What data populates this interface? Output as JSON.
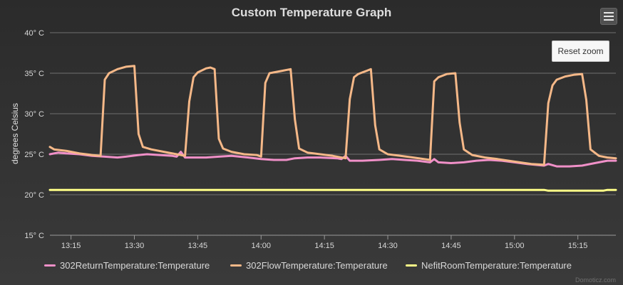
{
  "toolbar": {
    "menu_icon": "hamburger-menu-icon",
    "reset_zoom_label": "Reset zoom"
  },
  "credits": "Domoticz.com",
  "chart_data": {
    "type": "line",
    "title": "Custom Temperature Graph",
    "ylabel": "degrees Celsius",
    "xlabel": "",
    "x_unit": "time (HH:MM)",
    "x_range": [
      "13:10",
      "15:24"
    ],
    "ylim": [
      15,
      40
    ],
    "y_ticks": [
      15,
      20,
      25,
      30,
      35,
      40
    ],
    "y_tick_labels": [
      "15° C",
      "20° C",
      "25° C",
      "30° C",
      "35° C",
      "40° C"
    ],
    "x_ticks": [
      "13:15",
      "13:30",
      "13:45",
      "14:00",
      "14:15",
      "14:30",
      "14:45",
      "15:00",
      "15:15"
    ],
    "grid": "horizontal",
    "legend": "bottom",
    "series": [
      {
        "name": "302ReturnTemperature:Temperature",
        "color": "#f090c8",
        "points": [
          [
            "13:10",
            25.0
          ],
          [
            "13:12",
            25.2
          ],
          [
            "13:14",
            25.1
          ],
          [
            "13:17",
            25.0
          ],
          [
            "13:20",
            24.8
          ],
          [
            "13:23",
            24.7
          ],
          [
            "13:26",
            24.6
          ],
          [
            "13:28",
            24.7
          ],
          [
            "13:31",
            24.9
          ],
          [
            "13:33",
            25.0
          ],
          [
            "13:36",
            24.9
          ],
          [
            "13:39",
            24.8
          ],
          [
            "13:40",
            24.7
          ],
          [
            "13:41",
            25.3
          ],
          [
            "13:42",
            24.6
          ],
          [
            "13:44",
            24.6
          ],
          [
            "13:47",
            24.6
          ],
          [
            "13:50",
            24.7
          ],
          [
            "13:53",
            24.8
          ],
          [
            "13:57",
            24.6
          ],
          [
            "14:00",
            24.4
          ],
          [
            "14:03",
            24.3
          ],
          [
            "14:06",
            24.3
          ],
          [
            "14:08",
            24.5
          ],
          [
            "14:11",
            24.6
          ],
          [
            "14:14",
            24.6
          ],
          [
            "14:18",
            24.5
          ],
          [
            "14:19",
            24.4
          ],
          [
            "14:20",
            24.8
          ],
          [
            "14:21",
            24.2
          ],
          [
            "14:24",
            24.2
          ],
          [
            "14:28",
            24.3
          ],
          [
            "14:31",
            24.4
          ],
          [
            "14:34",
            24.3
          ],
          [
            "14:37",
            24.2
          ],
          [
            "14:40",
            24.0
          ],
          [
            "14:41",
            24.4
          ],
          [
            "14:42",
            24.0
          ],
          [
            "14:45",
            23.9
          ],
          [
            "14:48",
            24.0
          ],
          [
            "14:51",
            24.2
          ],
          [
            "14:54",
            24.3
          ],
          [
            "14:57",
            24.2
          ],
          [
            "15:00",
            24.0
          ],
          [
            "15:03",
            23.8
          ],
          [
            "15:07",
            23.6
          ],
          [
            "15:08",
            23.8
          ],
          [
            "15:10",
            23.5
          ],
          [
            "15:13",
            23.5
          ],
          [
            "15:16",
            23.6
          ],
          [
            "15:19",
            23.9
          ],
          [
            "15:22",
            24.2
          ],
          [
            "15:24",
            24.2
          ]
        ]
      },
      {
        "name": "302FlowTemperature:Temperature",
        "color": "#f5b888",
        "points": [
          [
            "13:10",
            25.9
          ],
          [
            "13:11",
            25.6
          ],
          [
            "13:14",
            25.4
          ],
          [
            "13:17",
            25.1
          ],
          [
            "13:20",
            24.9
          ],
          [
            "13:22",
            24.8
          ],
          [
            "13:23",
            34.2
          ],
          [
            "13:24",
            35.0
          ],
          [
            "13:26",
            35.5
          ],
          [
            "13:28",
            35.8
          ],
          [
            "13:30",
            35.9
          ],
          [
            "13:31",
            27.5
          ],
          [
            "13:32",
            25.9
          ],
          [
            "13:34",
            25.6
          ],
          [
            "13:37",
            25.3
          ],
          [
            "13:40",
            25.0
          ],
          [
            "13:42",
            24.8
          ],
          [
            "13:43",
            31.5
          ],
          [
            "13:44",
            34.5
          ],
          [
            "13:45",
            35.1
          ],
          [
            "13:47",
            35.6
          ],
          [
            "13:48",
            35.7
          ],
          [
            "13:49",
            35.5
          ],
          [
            "13:50",
            26.9
          ],
          [
            "13:51",
            25.7
          ],
          [
            "13:53",
            25.3
          ],
          [
            "13:56",
            25.0
          ],
          [
            "13:59",
            24.9
          ],
          [
            "14:00",
            24.7
          ],
          [
            "14:01",
            33.8
          ],
          [
            "14:02",
            35.0
          ],
          [
            "14:05",
            35.3
          ],
          [
            "14:07",
            35.5
          ],
          [
            "14:08",
            29.3
          ],
          [
            "14:09",
            25.7
          ],
          [
            "14:11",
            25.2
          ],
          [
            "14:14",
            25.0
          ],
          [
            "14:17",
            24.8
          ],
          [
            "14:20",
            24.5
          ],
          [
            "14:21",
            31.8
          ],
          [
            "14:22",
            34.5
          ],
          [
            "14:23",
            34.9
          ],
          [
            "14:25",
            35.3
          ],
          [
            "14:26",
            35.5
          ],
          [
            "14:27",
            28.6
          ],
          [
            "14:28",
            25.6
          ],
          [
            "14:30",
            25.0
          ],
          [
            "14:33",
            24.8
          ],
          [
            "14:36",
            24.6
          ],
          [
            "14:40",
            24.3
          ],
          [
            "14:41",
            34.0
          ],
          [
            "14:42",
            34.5
          ],
          [
            "14:44",
            34.9
          ],
          [
            "14:46",
            35.0
          ],
          [
            "14:47",
            28.9
          ],
          [
            "14:48",
            25.6
          ],
          [
            "14:50",
            24.9
          ],
          [
            "14:53",
            24.6
          ],
          [
            "14:56",
            24.4
          ],
          [
            "15:00",
            24.1
          ],
          [
            "15:04",
            23.8
          ],
          [
            "15:07",
            23.7
          ],
          [
            "15:08",
            31.3
          ],
          [
            "15:09",
            33.5
          ],
          [
            "15:10",
            34.2
          ],
          [
            "15:12",
            34.6
          ],
          [
            "15:14",
            34.8
          ],
          [
            "15:16",
            34.9
          ],
          [
            "15:17",
            31.7
          ],
          [
            "15:18",
            25.6
          ],
          [
            "15:20",
            24.8
          ],
          [
            "15:22",
            24.6
          ],
          [
            "15:24",
            24.5
          ]
        ]
      },
      {
        "name": "NefitRoomTemperature:Temperature",
        "color": "#ffff88",
        "points": [
          [
            "13:10",
            20.6
          ],
          [
            "15:07",
            20.6
          ],
          [
            "15:08",
            20.5
          ],
          [
            "15:21",
            20.5
          ],
          [
            "15:22",
            20.6
          ],
          [
            "15:24",
            20.6
          ]
        ]
      }
    ]
  }
}
